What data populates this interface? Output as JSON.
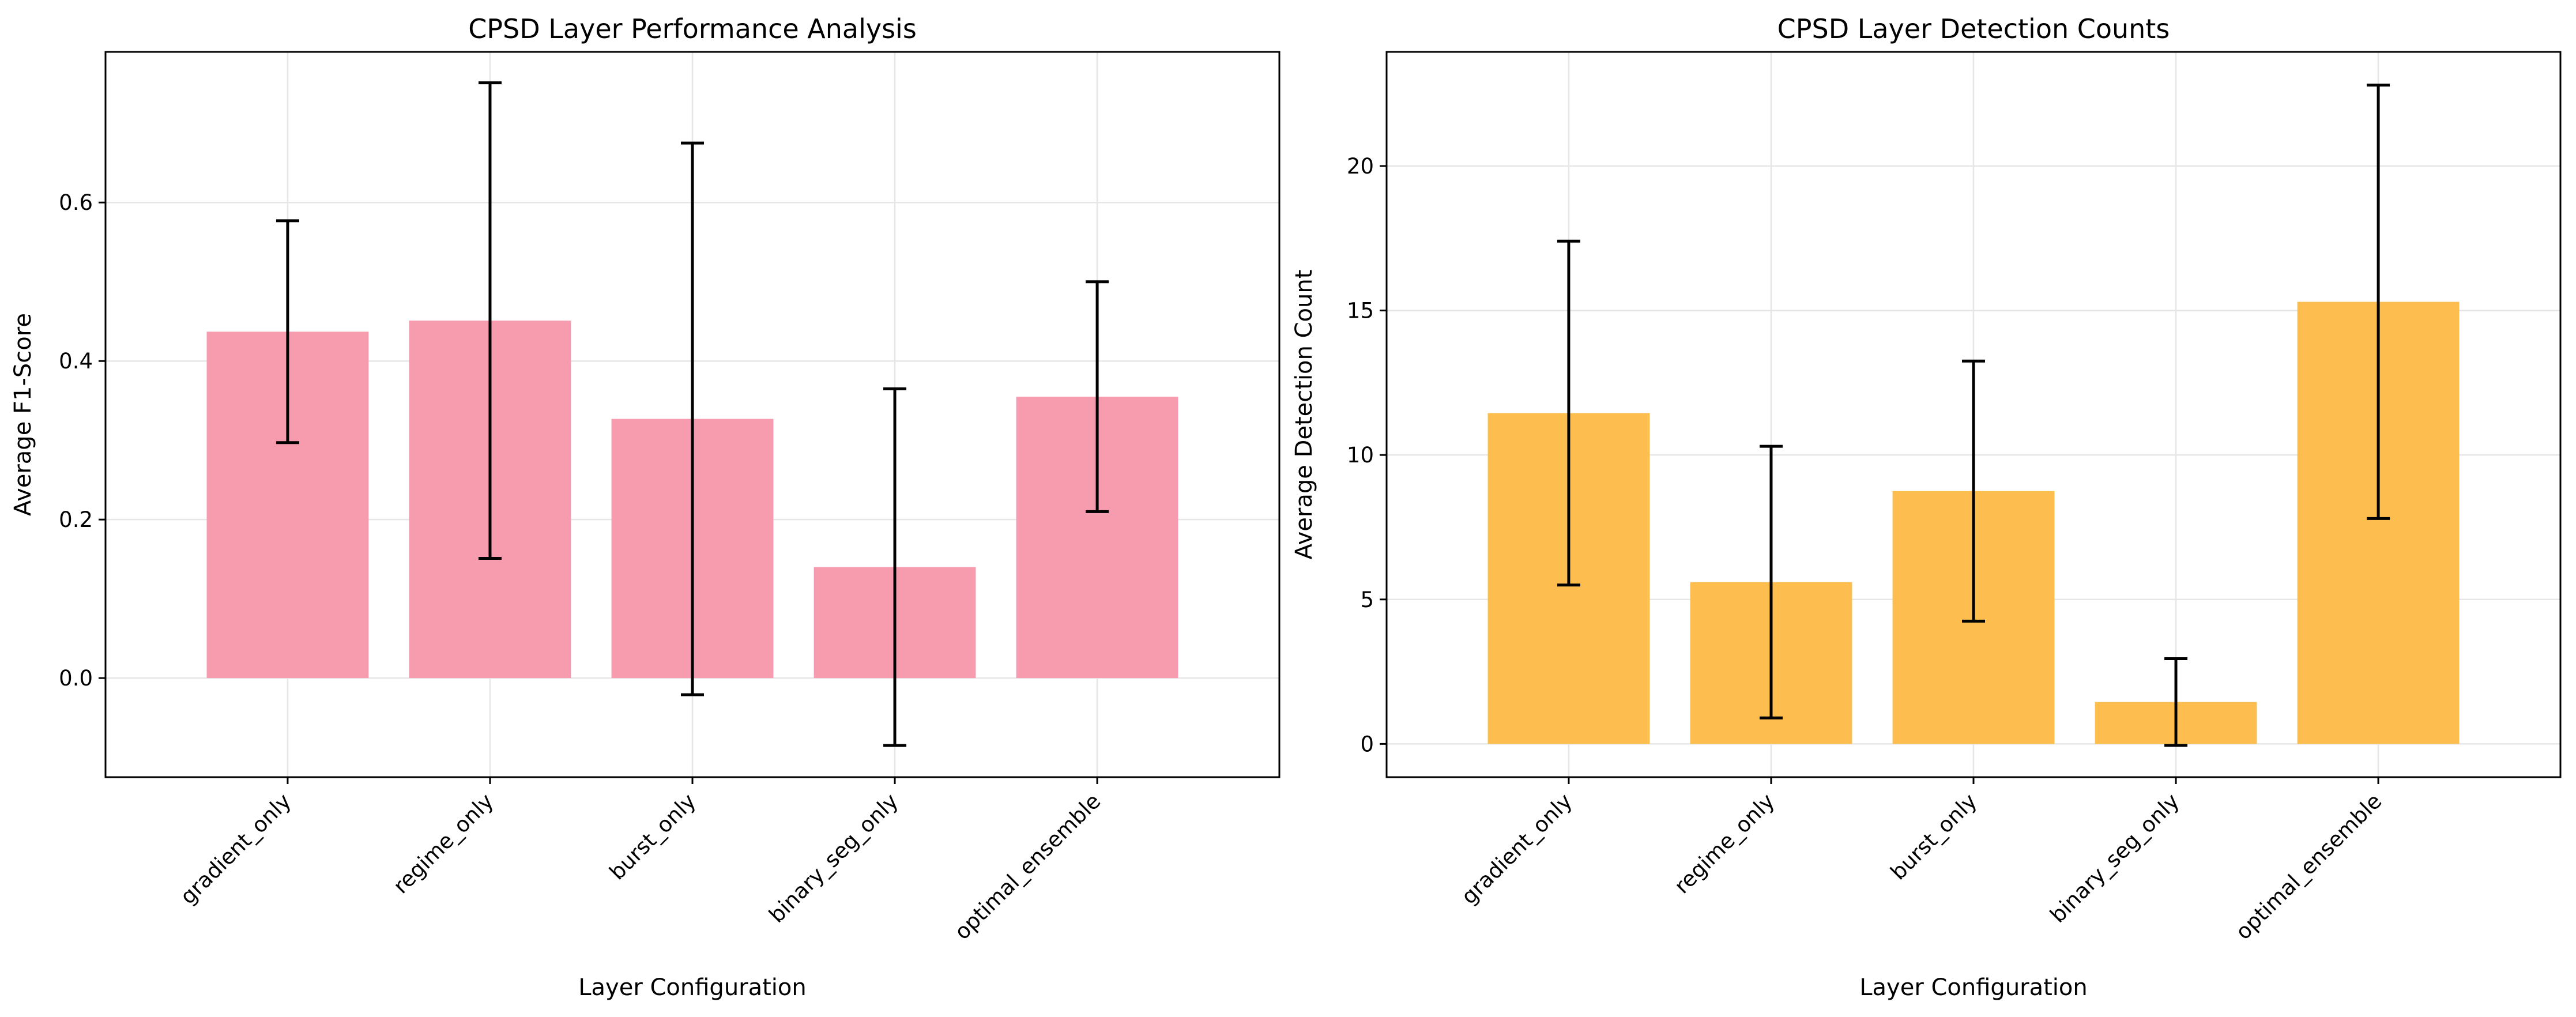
{
  "chart_data": [
    {
      "type": "bar",
      "title": "CPSD Layer Performance Analysis",
      "xlabel": "Layer Configuration",
      "ylabel": "Average F1-Score",
      "categories": [
        "gradient_only",
        "regime_only",
        "burst_only",
        "binary_seg_only",
        "optimal_ensemble"
      ],
      "values": [
        0.437,
        0.451,
        0.327,
        0.14,
        0.355
      ],
      "errors": [
        0.14,
        0.3,
        0.348,
        0.225,
        0.145
      ],
      "ylim": [
        -0.125,
        0.79
      ],
      "yticks": [
        0.0,
        0.2,
        0.4,
        0.6
      ],
      "ytick_labels": [
        "0.0",
        "0.2",
        "0.4",
        "0.6"
      ],
      "color": "#f79cae",
      "grid": true
    },
    {
      "type": "bar",
      "title": "CPSD Layer Detection Counts",
      "xlabel": "Layer Configuration",
      "ylabel": "Average Detection Count",
      "categories": [
        "gradient_only",
        "regime_only",
        "burst_only",
        "binary_seg_only",
        "optimal_ensemble"
      ],
      "values": [
        11.45,
        5.6,
        8.75,
        1.45,
        15.3
      ],
      "errors": [
        5.95,
        4.7,
        4.5,
        1.5,
        7.5
      ],
      "ylim": [
        -1.15,
        23.95
      ],
      "yticks": [
        0,
        5,
        10,
        15,
        20
      ],
      "ytick_labels": [
        "0",
        "5",
        "10",
        "15",
        "20"
      ],
      "color": "#fdbe4f",
      "grid": true
    }
  ]
}
